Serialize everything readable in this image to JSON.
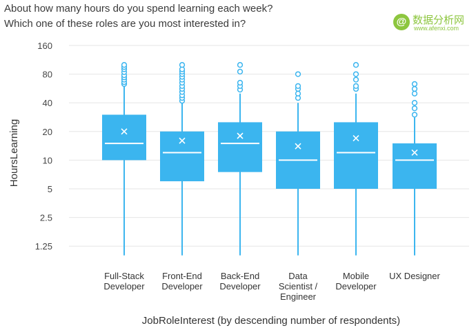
{
  "titles": {
    "line1": "About how many hours do you spend learning each week?",
    "line2": "Which one of these roles are you most interested in?"
  },
  "watermark": {
    "logo_letter": "@",
    "text": "数据分析网",
    "url": "www.afenxi.com"
  },
  "colors": {
    "box_fill": "#3bb5ef",
    "whisker": "#3bb5ef",
    "median": "#ffffff",
    "mean_marker": "#ffffff",
    "outlier": "#3bb5ef",
    "grid": "#e6e6e6",
    "watermark": "#8dc63f"
  },
  "chart_data": {
    "type": "box",
    "title": "About how many hours do you spend learning each week? Which one of these roles are you most interested in?",
    "xlabel": "JobRoleInterest (by descending number of respondents)",
    "ylabel": "HoursLearning",
    "yscale": "log2",
    "ylim": [
      1,
      160
    ],
    "yticks": [
      1.25,
      2.5,
      5,
      10,
      20,
      40,
      80,
      160
    ],
    "ytick_labels": [
      "1.25",
      "2.5",
      "5",
      "10",
      "20",
      "40",
      "80",
      "160"
    ],
    "grid": true,
    "categories": [
      [
        "Full-Stack",
        "Developer"
      ],
      [
        "Front-End",
        "Developer"
      ],
      [
        "Back-End",
        "Developer"
      ],
      [
        "Data",
        "Scientist /",
        "Engineer"
      ],
      [
        "Mobile",
        "Developer"
      ],
      [
        "UX Designer"
      ]
    ],
    "boxes": [
      {
        "q1": 10,
        "median": 15,
        "q3": 30,
        "mean": 20,
        "whisker_low": 1,
        "whisker_high": 60,
        "outliers": [
          63,
          66,
          70,
          74,
          78,
          84,
          90,
          95,
          100
        ]
      },
      {
        "q1": 6,
        "median": 12,
        "q3": 20,
        "mean": 16,
        "whisker_low": 1,
        "whisker_high": 40,
        "outliers": [
          42,
          45,
          48,
          52,
          56,
          60,
          65,
          70,
          75,
          80,
          85,
          90,
          100
        ]
      },
      {
        "q1": 7.5,
        "median": 15,
        "q3": 25,
        "mean": 18,
        "whisker_low": 1,
        "whisker_high": 50,
        "outliers": [
          55,
          60,
          65,
          85,
          100
        ]
      },
      {
        "q1": 5,
        "median": 10,
        "q3": 20,
        "mean": 14,
        "whisker_low": 1,
        "whisker_high": 40,
        "outliers": [
          45,
          50,
          56,
          60,
          80
        ]
      },
      {
        "q1": 5,
        "median": 12,
        "q3": 25,
        "mean": 17,
        "whisker_low": 1,
        "whisker_high": 50,
        "outliers": [
          56,
          60,
          70,
          80,
          100
        ]
      },
      {
        "q1": 5,
        "median": 10,
        "q3": 15,
        "mean": 12,
        "whisker_low": 1,
        "whisker_high": 28,
        "outliers": [
          30,
          35,
          40,
          50,
          56,
          63
        ]
      }
    ]
  }
}
